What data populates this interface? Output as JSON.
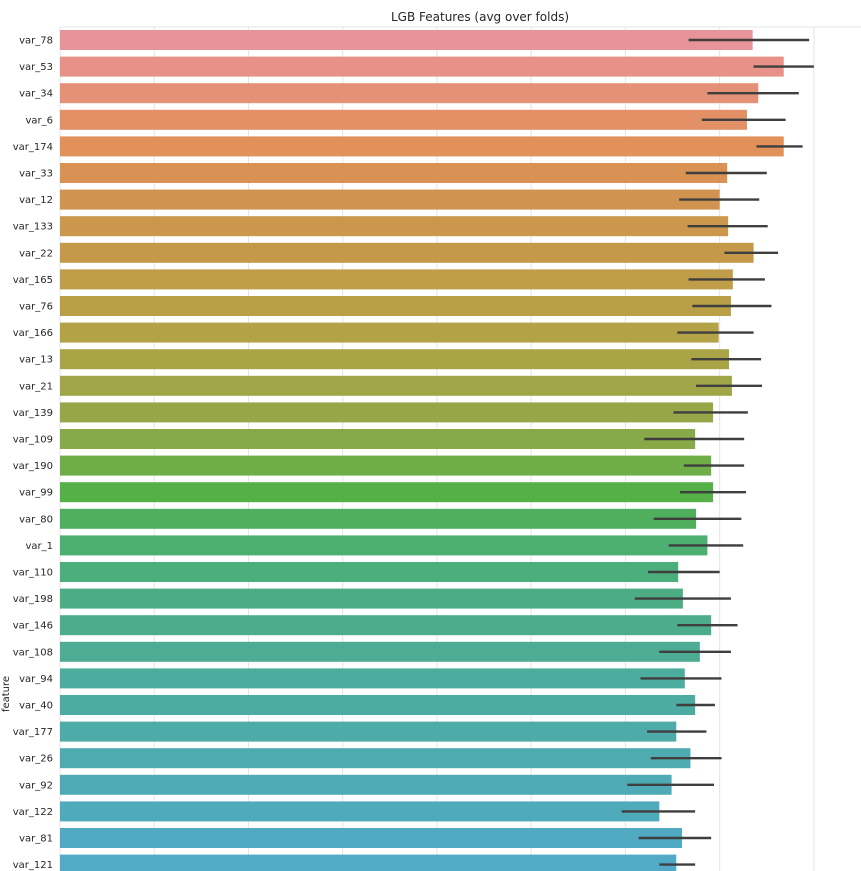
{
  "chart_data": {
    "type": "bar",
    "orientation": "horizontal",
    "title": "LGB Features (avg over folds)",
    "xlabel": "",
    "ylabel": "feature",
    "xlim": [
      0,
      850
    ],
    "grid": true,
    "bars": [
      {
        "feature": "var_78",
        "value": 735,
        "err_low": 667,
        "err_high": 795
      },
      {
        "feature": "var_53",
        "value": 768,
        "err_low": 736,
        "err_high": 800
      },
      {
        "feature": "var_34",
        "value": 741,
        "err_low": 687,
        "err_high": 784
      },
      {
        "feature": "var_6",
        "value": 729,
        "err_low": 681,
        "err_high": 770
      },
      {
        "feature": "var_174",
        "value": 768,
        "err_low": 739,
        "err_high": 788
      },
      {
        "feature": "var_33",
        "value": 708,
        "err_low": 664,
        "err_high": 750
      },
      {
        "feature": "var_12",
        "value": 700,
        "err_low": 657,
        "err_high": 742
      },
      {
        "feature": "var_133",
        "value": 709,
        "err_low": 666,
        "err_high": 751
      },
      {
        "feature": "var_22",
        "value": 736,
        "err_low": 705,
        "err_high": 762
      },
      {
        "feature": "var_165",
        "value": 714,
        "err_low": 667,
        "err_high": 748
      },
      {
        "feature": "var_76",
        "value": 712,
        "err_low": 671,
        "err_high": 755
      },
      {
        "feature": "var_166",
        "value": 699,
        "err_low": 655,
        "err_high": 736
      },
      {
        "feature": "var_13",
        "value": 710,
        "err_low": 670,
        "err_high": 744
      },
      {
        "feature": "var_21",
        "value": 713,
        "err_low": 675,
        "err_high": 745
      },
      {
        "feature": "var_139",
        "value": 693,
        "err_low": 651,
        "err_high": 730
      },
      {
        "feature": "var_109",
        "value": 674,
        "err_low": 620,
        "err_high": 726
      },
      {
        "feature": "var_190",
        "value": 691,
        "err_low": 662,
        "err_high": 726
      },
      {
        "feature": "var_99",
        "value": 693,
        "err_low": 658,
        "err_high": 728
      },
      {
        "feature": "var_80",
        "value": 675,
        "err_low": 630,
        "err_high": 723
      },
      {
        "feature": "var_1",
        "value": 687,
        "err_low": 646,
        "err_high": 725
      },
      {
        "feature": "var_110",
        "value": 656,
        "err_low": 624,
        "err_high": 700
      },
      {
        "feature": "var_198",
        "value": 661,
        "err_low": 610,
        "err_high": 712
      },
      {
        "feature": "var_146",
        "value": 691,
        "err_low": 655,
        "err_high": 719
      },
      {
        "feature": "var_108",
        "value": 679,
        "err_low": 636,
        "err_high": 712
      },
      {
        "feature": "var_94",
        "value": 663,
        "err_low": 616,
        "err_high": 702
      },
      {
        "feature": "var_40",
        "value": 674,
        "err_low": 654,
        "err_high": 695
      },
      {
        "feature": "var_177",
        "value": 654,
        "err_low": 623,
        "err_high": 686
      },
      {
        "feature": "var_26",
        "value": 669,
        "err_low": 627,
        "err_high": 702
      },
      {
        "feature": "var_92",
        "value": 649,
        "err_low": 602,
        "err_high": 694
      },
      {
        "feature": "var_122",
        "value": 636,
        "err_low": 596,
        "err_high": 674
      },
      {
        "feature": "var_81",
        "value": 660,
        "err_low": 614,
        "err_high": 691
      },
      {
        "feature": "var_121",
        "value": 654,
        "err_low": 636,
        "err_high": 674
      }
    ]
  }
}
